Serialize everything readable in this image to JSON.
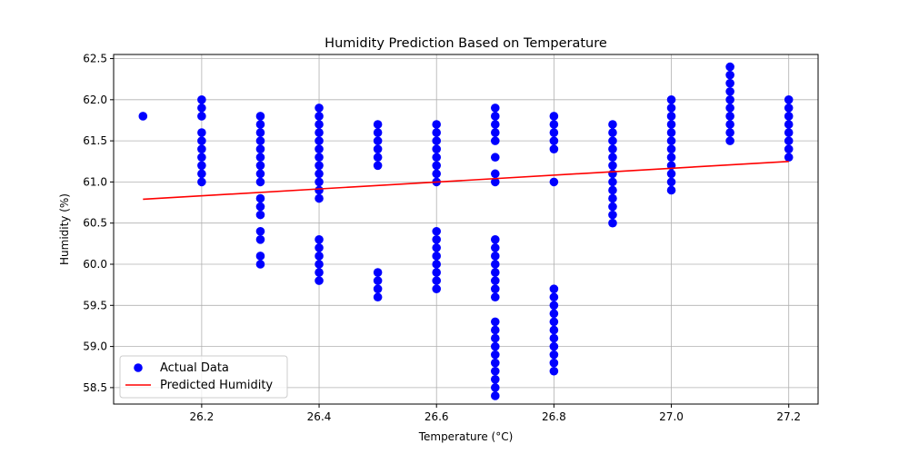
{
  "chart_data": {
    "type": "scatter",
    "title": "Humidity Prediction Based on Temperature",
    "xlabel": "Temperature (°C)",
    "ylabel": "Humidity (%)",
    "xlim": [
      26.05,
      27.25
    ],
    "ylim": [
      58.3,
      62.55
    ],
    "xticks": [
      26.2,
      26.4,
      26.6,
      26.8,
      27.0,
      27.2
    ],
    "yticks": [
      58.5,
      59.0,
      59.5,
      60.0,
      60.5,
      61.0,
      61.5,
      62.0,
      62.5
    ],
    "xtick_labels": [
      "26.2",
      "26.4",
      "26.6",
      "26.8",
      "27.0",
      "27.2"
    ],
    "ytick_labels": [
      "58.5",
      "59.0",
      "59.5",
      "60.0",
      "60.5",
      "61.0",
      "61.5",
      "62.0",
      "62.5"
    ],
    "grid": true,
    "legend_position": "lower-left",
    "series": [
      {
        "name": "Actual Data",
        "kind": "scatter",
        "color": "#0000ff",
        "points": [
          [
            26.1,
            61.8
          ],
          [
            26.2,
            62.0
          ],
          [
            26.2,
            61.9
          ],
          [
            26.2,
            61.8
          ],
          [
            26.2,
            61.6
          ],
          [
            26.2,
            61.5
          ],
          [
            26.2,
            61.4
          ],
          [
            26.2,
            61.3
          ],
          [
            26.2,
            61.2
          ],
          [
            26.2,
            61.1
          ],
          [
            26.2,
            61.0
          ],
          [
            26.3,
            61.8
          ],
          [
            26.3,
            61.7
          ],
          [
            26.3,
            61.6
          ],
          [
            26.3,
            61.5
          ],
          [
            26.3,
            61.4
          ],
          [
            26.3,
            61.3
          ],
          [
            26.3,
            61.2
          ],
          [
            26.3,
            61.1
          ],
          [
            26.3,
            61.0
          ],
          [
            26.3,
            60.8
          ],
          [
            26.3,
            60.7
          ],
          [
            26.3,
            60.6
          ],
          [
            26.3,
            60.4
          ],
          [
            26.3,
            60.3
          ],
          [
            26.3,
            60.1
          ],
          [
            26.3,
            60.0
          ],
          [
            26.4,
            61.9
          ],
          [
            26.4,
            61.8
          ],
          [
            26.4,
            61.7
          ],
          [
            26.4,
            61.6
          ],
          [
            26.4,
            61.5
          ],
          [
            26.4,
            61.4
          ],
          [
            26.4,
            61.3
          ],
          [
            26.4,
            61.2
          ],
          [
            26.4,
            61.1
          ],
          [
            26.4,
            61.0
          ],
          [
            26.4,
            60.9
          ],
          [
            26.4,
            60.8
          ],
          [
            26.4,
            60.3
          ],
          [
            26.4,
            60.2
          ],
          [
            26.4,
            60.1
          ],
          [
            26.4,
            60.0
          ],
          [
            26.4,
            59.9
          ],
          [
            26.4,
            59.8
          ],
          [
            26.5,
            61.7
          ],
          [
            26.5,
            61.6
          ],
          [
            26.5,
            61.5
          ],
          [
            26.5,
            61.4
          ],
          [
            26.5,
            61.3
          ],
          [
            26.5,
            61.2
          ],
          [
            26.5,
            59.9
          ],
          [
            26.5,
            59.8
          ],
          [
            26.5,
            59.7
          ],
          [
            26.5,
            59.6
          ],
          [
            26.6,
            61.7
          ],
          [
            26.6,
            61.6
          ],
          [
            26.6,
            61.5
          ],
          [
            26.6,
            61.4
          ],
          [
            26.6,
            61.3
          ],
          [
            26.6,
            61.2
          ],
          [
            26.6,
            61.1
          ],
          [
            26.6,
            61.0
          ],
          [
            26.6,
            60.4
          ],
          [
            26.6,
            60.3
          ],
          [
            26.6,
            60.2
          ],
          [
            26.6,
            60.1
          ],
          [
            26.6,
            60.0
          ],
          [
            26.6,
            59.9
          ],
          [
            26.6,
            59.8
          ],
          [
            26.6,
            59.7
          ],
          [
            26.7,
            61.9
          ],
          [
            26.7,
            61.8
          ],
          [
            26.7,
            61.7
          ],
          [
            26.7,
            61.6
          ],
          [
            26.7,
            61.5
          ],
          [
            26.7,
            61.3
          ],
          [
            26.7,
            61.1
          ],
          [
            26.7,
            61.0
          ],
          [
            26.7,
            60.3
          ],
          [
            26.7,
            60.2
          ],
          [
            26.7,
            60.1
          ],
          [
            26.7,
            60.0
          ],
          [
            26.7,
            59.9
          ],
          [
            26.7,
            59.8
          ],
          [
            26.7,
            59.7
          ],
          [
            26.7,
            59.6
          ],
          [
            26.7,
            59.3
          ],
          [
            26.7,
            59.2
          ],
          [
            26.7,
            59.1
          ],
          [
            26.7,
            59.0
          ],
          [
            26.7,
            58.9
          ],
          [
            26.7,
            58.8
          ],
          [
            26.7,
            58.7
          ],
          [
            26.7,
            58.6
          ],
          [
            26.7,
            58.5
          ],
          [
            26.7,
            58.4
          ],
          [
            26.8,
            61.8
          ],
          [
            26.8,
            61.7
          ],
          [
            26.8,
            61.6
          ],
          [
            26.8,
            61.5
          ],
          [
            26.8,
            61.4
          ],
          [
            26.8,
            61.0
          ],
          [
            26.8,
            59.7
          ],
          [
            26.8,
            59.6
          ],
          [
            26.8,
            59.5
          ],
          [
            26.8,
            59.4
          ],
          [
            26.8,
            59.3
          ],
          [
            26.8,
            59.2
          ],
          [
            26.8,
            59.1
          ],
          [
            26.8,
            59.0
          ],
          [
            26.8,
            58.9
          ],
          [
            26.8,
            58.8
          ],
          [
            26.8,
            58.7
          ],
          [
            26.9,
            61.7
          ],
          [
            26.9,
            61.6
          ],
          [
            26.9,
            61.5
          ],
          [
            26.9,
            61.4
          ],
          [
            26.9,
            61.3
          ],
          [
            26.9,
            61.2
          ],
          [
            26.9,
            61.1
          ],
          [
            26.9,
            61.0
          ],
          [
            26.9,
            60.9
          ],
          [
            26.9,
            60.8
          ],
          [
            26.9,
            60.7
          ],
          [
            26.9,
            60.6
          ],
          [
            26.9,
            60.5
          ],
          [
            27.0,
            62.0
          ],
          [
            27.0,
            61.9
          ],
          [
            27.0,
            61.8
          ],
          [
            27.0,
            61.7
          ],
          [
            27.0,
            61.6
          ],
          [
            27.0,
            61.5
          ],
          [
            27.0,
            61.4
          ],
          [
            27.0,
            61.3
          ],
          [
            27.0,
            61.2
          ],
          [
            27.0,
            61.1
          ],
          [
            27.0,
            61.0
          ],
          [
            27.0,
            60.9
          ],
          [
            27.1,
            62.4
          ],
          [
            27.1,
            62.3
          ],
          [
            27.1,
            62.2
          ],
          [
            27.1,
            62.1
          ],
          [
            27.1,
            62.0
          ],
          [
            27.1,
            61.9
          ],
          [
            27.1,
            61.8
          ],
          [
            27.1,
            61.7
          ],
          [
            27.1,
            61.6
          ],
          [
            27.1,
            61.5
          ],
          [
            27.2,
            62.0
          ],
          [
            27.2,
            61.9
          ],
          [
            27.2,
            61.8
          ],
          [
            27.2,
            61.7
          ],
          [
            27.2,
            61.6
          ],
          [
            27.2,
            61.5
          ],
          [
            27.2,
            61.4
          ],
          [
            27.2,
            61.3
          ]
        ]
      },
      {
        "name": "Predicted Humidity",
        "kind": "line",
        "color": "#ff0000",
        "points": [
          [
            26.1,
            60.79
          ],
          [
            27.2,
            61.25
          ]
        ]
      }
    ]
  }
}
